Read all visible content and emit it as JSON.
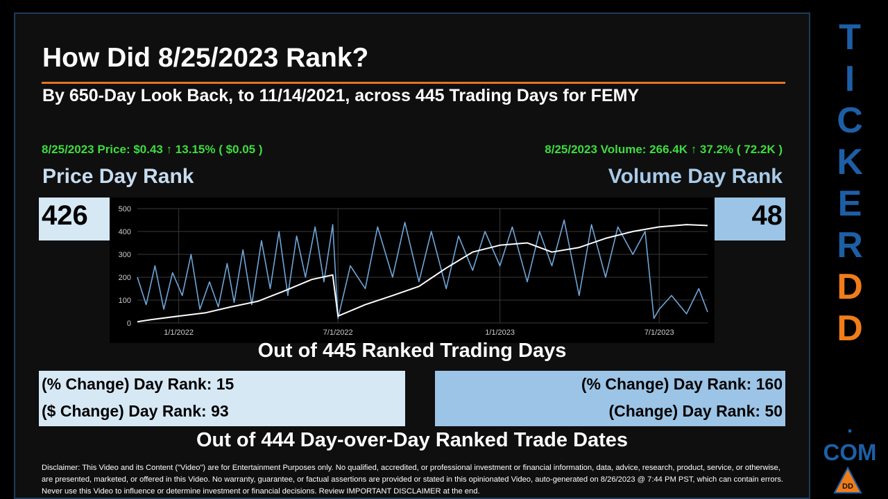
{
  "title": "How Did 8/25/2023 Rank?",
  "subtitle": "By 650-Day Look Back, to 11/14/2021, across 445 Trading Days for FEMY",
  "price_info": "8/25/2023 Price: $0.43 ↑ 13.15% ( $0.05 )",
  "volume_info": "8/25/2023 Volume: 266.4K ↑ 37.2% ( 72.2K )",
  "price_header": "Price Day Rank",
  "volume_header": "Volume Day Rank",
  "price_rank": "426",
  "volume_rank": "48",
  "ranked_days_caption": "Out of 445 Ranked Trading Days",
  "left_box": {
    "line1": "(% Change) Day Rank: 15",
    "line2": "($ Change) Day Rank: 93"
  },
  "right_box": {
    "line1": "(% Change) Day Rank: 160",
    "line2": "(Change) Day Rank: 50"
  },
  "trade_dates_caption": "Out of 444 Day-over-Day Ranked Trade Dates",
  "disclaimer": "Disclaimer: This Video and its Content (\"Video\") are for Entertainment Purposes only. No qualified, accredited, or professional investment or financial information, data, advice, research, product, service, or otherwise, are presented, marketed, or offered in this Video. No warranty, guarantee, or factual assertions are provided or stated in this opinionated Video, auto-generated on 8/26/2023 @ 7:44 PM PST, which can contain errors. Never use this Video to influence or determine investment or financial decisions. Review IMPORTANT DISCLAIMER at the end.",
  "brand": {
    "letters": [
      "T",
      "I",
      "C",
      "K",
      "E",
      "R",
      "D",
      "D"
    ],
    "dot": ".",
    "com": "COM",
    "logo_text": "DD"
  },
  "colors": {
    "price_line": "#ffffff",
    "volume_line": "#6fa6d8",
    "accent_orange": "#e67320",
    "brand_blue": "#1d5fa6",
    "brand_orange": "#f07d1a",
    "green": "#3fdc3f"
  },
  "chart_data": {
    "type": "line",
    "x_axis": {
      "ticks": [
        "1/1/2022",
        "7/1/2022",
        "1/1/2023",
        "7/1/2023"
      ],
      "range": [
        "11/15/2021",
        "8/25/2023"
      ]
    },
    "y_axis": {
      "ticks": [
        0,
        100,
        200,
        300,
        400,
        500
      ],
      "ylim": [
        0,
        500
      ]
    },
    "grid": true,
    "series": [
      {
        "points": [
          [
            "11/15/2021",
            5
          ],
          [
            "12/1/2021",
            15
          ],
          [
            "1/1/2022",
            30
          ],
          [
            "2/1/2022",
            45
          ],
          [
            "3/1/2022",
            70
          ],
          [
            "4/1/2022",
            95
          ],
          [
            "5/1/2022",
            140
          ],
          [
            "6/1/2022",
            190
          ],
          [
            "6/25/2022",
            210
          ],
          [
            "7/1/2022",
            30
          ],
          [
            "8/1/2022",
            80
          ],
          [
            "9/1/2022",
            120
          ],
          [
            "10/1/2022",
            160
          ],
          [
            "11/1/2022",
            240
          ],
          [
            "12/1/2022",
            310
          ],
          [
            "1/1/2023",
            340
          ],
          [
            "2/1/2023",
            350
          ],
          [
            "3/1/2023",
            310
          ],
          [
            "4/1/2023",
            330
          ],
          [
            "5/1/2023",
            370
          ],
          [
            "6/1/2023",
            400
          ],
          [
            "7/1/2023",
            420
          ],
          [
            "8/1/2023",
            430
          ],
          [
            "8/25/2023",
            426
          ]
        ]
      },
      {
        "points": [
          [
            "11/15/2021",
            200
          ],
          [
            "11/25/2021",
            80
          ],
          [
            "12/5/2021",
            250
          ],
          [
            "12/15/2021",
            60
          ],
          [
            "12/25/2021",
            220
          ],
          [
            "1/5/2022",
            120
          ],
          [
            "1/15/2022",
            300
          ],
          [
            "1/25/2022",
            60
          ],
          [
            "2/5/2022",
            180
          ],
          [
            "2/15/2022",
            70
          ],
          [
            "2/25/2022",
            260
          ],
          [
            "3/5/2022",
            90
          ],
          [
            "3/15/2022",
            320
          ],
          [
            "3/25/2022",
            80
          ],
          [
            "4/5/2022",
            360
          ],
          [
            "4/15/2022",
            150
          ],
          [
            "4/25/2022",
            400
          ],
          [
            "5/5/2022",
            120
          ],
          [
            "5/15/2022",
            380
          ],
          [
            "5/25/2022",
            200
          ],
          [
            "6/5/2022",
            420
          ],
          [
            "6/15/2022",
            180
          ],
          [
            "6/25/2022",
            430
          ],
          [
            "7/1/2022",
            20
          ],
          [
            "7/15/2022",
            250
          ],
          [
            "8/1/2022",
            150
          ],
          [
            "8/15/2022",
            420
          ],
          [
            "9/1/2022",
            200
          ],
          [
            "9/15/2022",
            440
          ],
          [
            "10/1/2022",
            180
          ],
          [
            "10/15/2022",
            400
          ],
          [
            "11/1/2022",
            150
          ],
          [
            "11/15/2022",
            380
          ],
          [
            "12/1/2022",
            230
          ],
          [
            "12/15/2022",
            400
          ],
          [
            "1/1/2023",
            250
          ],
          [
            "1/15/2023",
            420
          ],
          [
            "2/1/2023",
            180
          ],
          [
            "2/15/2023",
            400
          ],
          [
            "3/1/2023",
            250
          ],
          [
            "3/15/2023",
            450
          ],
          [
            "4/1/2023",
            120
          ],
          [
            "4/15/2023",
            430
          ],
          [
            "5/1/2023",
            200
          ],
          [
            "5/15/2023",
            420
          ],
          [
            "6/1/2023",
            300
          ],
          [
            "6/15/2023",
            400
          ],
          [
            "6/25/2023",
            20
          ],
          [
            "7/1/2023",
            60
          ],
          [
            "7/15/2023",
            120
          ],
          [
            "8/1/2023",
            40
          ],
          [
            "8/15/2023",
            150
          ],
          [
            "8/25/2023",
            48
          ]
        ]
      }
    ]
  }
}
